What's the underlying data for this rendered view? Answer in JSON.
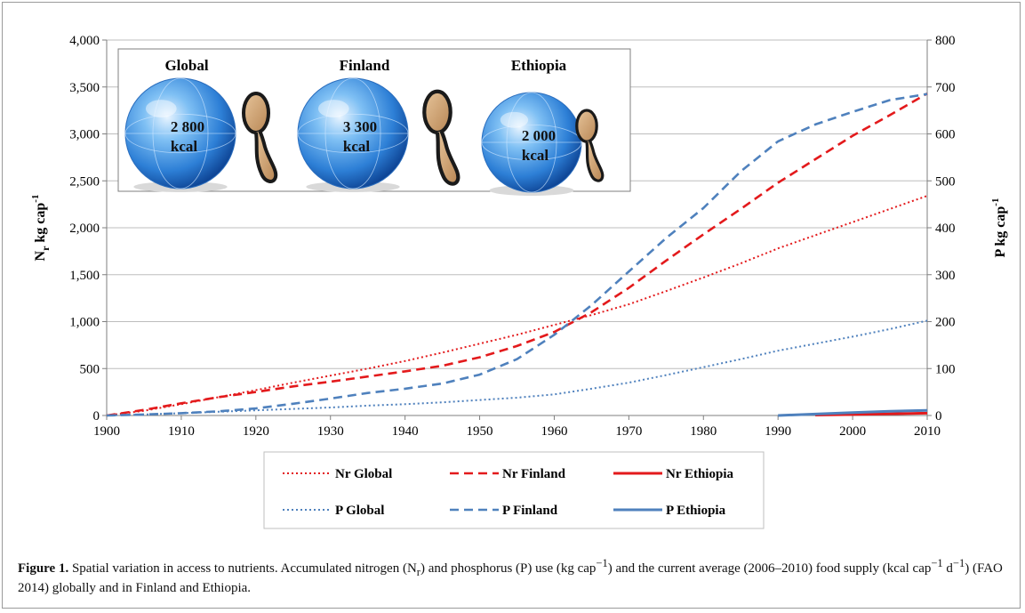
{
  "chart_data": {
    "type": "line",
    "x": [
      1900,
      1905,
      1910,
      1915,
      1920,
      1925,
      1930,
      1935,
      1940,
      1945,
      1950,
      1955,
      1960,
      1965,
      1970,
      1975,
      1980,
      1985,
      1990,
      1995,
      2000,
      2005,
      2010
    ],
    "xticks": [
      "1900",
      "1910",
      "1920",
      "1930",
      "1940",
      "1950",
      "1960",
      "1970",
      "1980",
      "1990",
      "2000",
      "2010"
    ],
    "y_left_ticks": [
      "0",
      "500",
      "1,000",
      "1,500",
      "2,000",
      "2,500",
      "3,000",
      "3,500",
      "4,000"
    ],
    "y_right_ticks": [
      "0",
      "100",
      "200",
      "300",
      "400",
      "500",
      "600",
      "700",
      "800"
    ],
    "ylim_left": [
      0,
      4000
    ],
    "ylim_right": [
      0,
      800
    ],
    "ylabel_left_main": "N",
    "ylabel_left_sub": "r",
    "ylabel_left_rest": " kg cap",
    "ylabel_left_sup": "-1",
    "ylabel_right_main": "P kg cap",
    "ylabel_right_sup": "-1",
    "grid": "horizontal",
    "legend_position": "bottom",
    "series": [
      {
        "name": "Nr Global",
        "axis": "left",
        "color": "#e31a1c",
        "style": "dotted",
        "values": [
          0,
          50,
          120,
          195,
          270,
          350,
          425,
          500,
          580,
          670,
          765,
          860,
          965,
          1070,
          1185,
          1325,
          1470,
          1620,
          1780,
          1920,
          2060,
          2200,
          2340
        ]
      },
      {
        "name": "Nr Finland",
        "axis": "left",
        "color": "#e31a1c",
        "style": "dashed",
        "values": [
          0,
          60,
          130,
          195,
          250,
          310,
          360,
          415,
          470,
          530,
          620,
          740,
          890,
          1100,
          1360,
          1650,
          1930,
          2200,
          2480,
          2730,
          2980,
          3200,
          3430
        ]
      },
      {
        "name": "Nr Ethiopia",
        "axis": "left",
        "color": "#e31a1c",
        "style": "solid",
        "values": [
          null,
          null,
          null,
          null,
          null,
          null,
          null,
          null,
          null,
          null,
          null,
          null,
          null,
          null,
          null,
          null,
          null,
          null,
          null,
          5,
          10,
          18,
          25
        ]
      },
      {
        "name": "P Global",
        "axis": "right",
        "color": "#4f81bd",
        "style": "dotted",
        "values": [
          0,
          2,
          5,
          8,
          11,
          14,
          17,
          21,
          24,
          28,
          33,
          38,
          45,
          57,
          70,
          86,
          103,
          120,
          138,
          153,
          168,
          184,
          202
        ]
      },
      {
        "name": "P Finland",
        "axis": "right",
        "color": "#4f81bd",
        "style": "dashed",
        "values": [
          0,
          2,
          5,
          9,
          15,
          25,
          36,
          48,
          57,
          68,
          87,
          120,
          172,
          235,
          307,
          378,
          442,
          520,
          584,
          620,
          647,
          672,
          685
        ]
      },
      {
        "name": "P Ethiopia",
        "axis": "right",
        "color": "#4f81bd",
        "style": "solid",
        "values": [
          null,
          null,
          null,
          null,
          null,
          null,
          null,
          null,
          null,
          null,
          null,
          null,
          null,
          null,
          null,
          null,
          null,
          null,
          0,
          3,
          6,
          9,
          11
        ]
      }
    ],
    "inset": [
      {
        "title": "Global",
        "kcal_value": "2 800",
        "kcal_unit": "kcal"
      },
      {
        "title": "Finland",
        "kcal_value": "3 300",
        "kcal_unit": "kcal"
      },
      {
        "title": "Ethiopia",
        "kcal_value": "2 000",
        "kcal_unit": "kcal"
      }
    ]
  },
  "caption": {
    "label": "Figure 1.",
    "text": " Spatial variation in access to nutrients. Accumulated nitrogen (N",
    "sub_r": "r",
    "text2": ") and phosphorus (P) use (kg cap",
    "sup1": "−1",
    "text3": ") and the current average (2006–2010) food supply (kcal cap",
    "sup2": "−1",
    "text4": " d",
    "sup3": "−1",
    "text5": ") (FAO 2014) globally and in Finland and Ethiopia."
  }
}
